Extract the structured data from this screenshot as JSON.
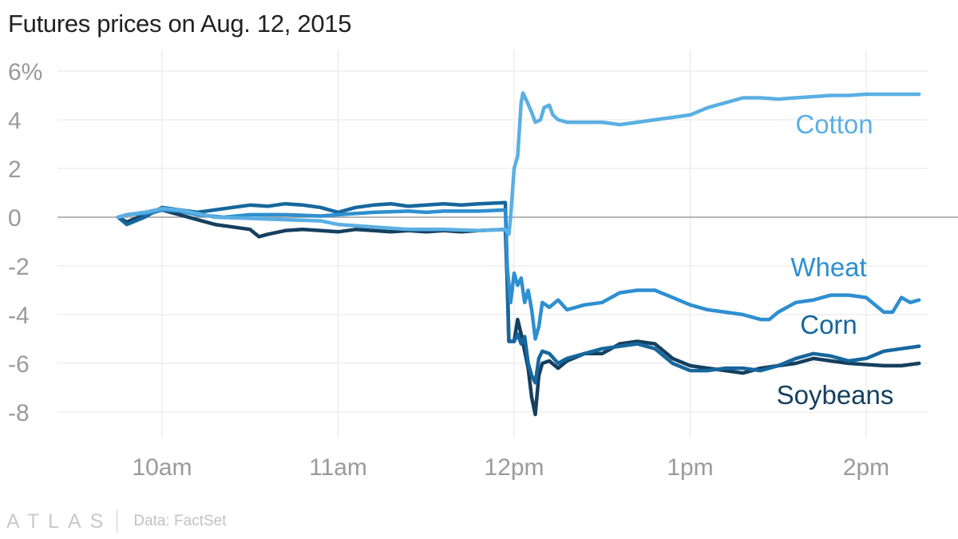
{
  "title": "Futures prices on Aug. 12, 2015",
  "footer": {
    "logo": "ATLAS",
    "source": "Data: FactSet"
  },
  "colors": {
    "cotton": "#5aafe3",
    "wheat": "#2e8fd0",
    "corn": "#17679e",
    "soybeans": "#153f5f",
    "gridline": "#e6e6e6",
    "zeroline": "#8a8a8a",
    "tick_label": "#9a9a9a"
  },
  "chart_data": {
    "type": "line",
    "title": "Futures prices on Aug. 12, 2015",
    "xlabel": "",
    "ylabel": "",
    "x_ticks": [
      {
        "x": 10,
        "label": "10am"
      },
      {
        "x": 11,
        "label": "11am"
      },
      {
        "x": 12,
        "label": "12pm"
      },
      {
        "x": 13,
        "label": "1pm"
      },
      {
        "x": 14,
        "label": "2pm"
      }
    ],
    "y_ticks": [
      {
        "y": 6,
        "label": "6%"
      },
      {
        "y": 4,
        "label": "4"
      },
      {
        "y": 2,
        "label": "2"
      },
      {
        "y": 0,
        "label": "0"
      },
      {
        "y": -2,
        "label": "-2"
      },
      {
        "y": -4,
        "label": "-4"
      },
      {
        "y": -6,
        "label": "-6"
      },
      {
        "y": -8,
        "label": "-8"
      }
    ],
    "xlim": [
      9.5,
      14.35
    ],
    "ylim": [
      -9,
      6.5
    ],
    "grid": true,
    "series": [
      {
        "name": "Cotton",
        "color": "#5aafe3",
        "points": [
          [
            9.75,
            0
          ],
          [
            9.8,
            0.1
          ],
          [
            9.9,
            0.2
          ],
          [
            10,
            0.35
          ],
          [
            10.1,
            0.3
          ],
          [
            10.2,
            0.15
          ],
          [
            10.3,
            0
          ],
          [
            10.5,
            -0.05
          ],
          [
            10.7,
            -0.1
          ],
          [
            10.9,
            -0.15
          ],
          [
            11,
            -0.3
          ],
          [
            11.2,
            -0.4
          ],
          [
            11.4,
            -0.5
          ],
          [
            11.6,
            -0.5
          ],
          [
            11.8,
            -0.55
          ],
          [
            11.95,
            -0.5
          ],
          [
            11.97,
            -0.7
          ],
          [
            11.98,
            0
          ],
          [
            12,
            2
          ],
          [
            12.02,
            2.5
          ],
          [
            12.04,
            4.7
          ],
          [
            12.05,
            5.1
          ],
          [
            12.07,
            4.8
          ],
          [
            12.1,
            4.3
          ],
          [
            12.12,
            3.9
          ],
          [
            12.15,
            4
          ],
          [
            12.17,
            4.5
          ],
          [
            12.2,
            4.6
          ],
          [
            12.22,
            4.2
          ],
          [
            12.25,
            4
          ],
          [
            12.3,
            3.9
          ],
          [
            12.4,
            3.9
          ],
          [
            12.5,
            3.9
          ],
          [
            12.6,
            3.8
          ],
          [
            12.7,
            3.9
          ],
          [
            12.8,
            4
          ],
          [
            12.9,
            4.1
          ],
          [
            13,
            4.2
          ],
          [
            13.1,
            4.5
          ],
          [
            13.2,
            4.7
          ],
          [
            13.3,
            4.9
          ],
          [
            13.4,
            4.9
          ],
          [
            13.5,
            4.85
          ],
          [
            13.6,
            4.9
          ],
          [
            13.7,
            4.95
          ],
          [
            13.8,
            5
          ],
          [
            13.9,
            5
          ],
          [
            14,
            5.05
          ],
          [
            14.1,
            5.05
          ],
          [
            14.2,
            5.05
          ],
          [
            14.3,
            5.05
          ]
        ]
      },
      {
        "name": "Wheat",
        "color": "#2e8fd0",
        "points": [
          [
            9.75,
            0
          ],
          [
            9.8,
            0.1
          ],
          [
            9.9,
            0.15
          ],
          [
            10,
            0.3
          ],
          [
            10.1,
            0.25
          ],
          [
            10.2,
            0.1
          ],
          [
            10.35,
            0
          ],
          [
            10.5,
            0.1
          ],
          [
            10.7,
            0.1
          ],
          [
            10.9,
            0.05
          ],
          [
            11,
            0.1
          ],
          [
            11.2,
            0.2
          ],
          [
            11.4,
            0.25
          ],
          [
            11.5,
            0.2
          ],
          [
            11.6,
            0.25
          ],
          [
            11.8,
            0.25
          ],
          [
            11.95,
            0.3
          ],
          [
            11.96,
            -2
          ],
          [
            11.98,
            -3.5
          ],
          [
            12,
            -2.3
          ],
          [
            12.02,
            -2.8
          ],
          [
            12.04,
            -2.5
          ],
          [
            12.06,
            -3.5
          ],
          [
            12.08,
            -3
          ],
          [
            12.1,
            -3.8
          ],
          [
            12.12,
            -5
          ],
          [
            12.14,
            -4.5
          ],
          [
            12.16,
            -3.5
          ],
          [
            12.2,
            -3.7
          ],
          [
            12.25,
            -3.4
          ],
          [
            12.3,
            -3.8
          ],
          [
            12.4,
            -3.6
          ],
          [
            12.5,
            -3.5
          ],
          [
            12.6,
            -3.1
          ],
          [
            12.7,
            -3
          ],
          [
            12.8,
            -3
          ],
          [
            12.9,
            -3.3
          ],
          [
            13,
            -3.6
          ],
          [
            13.1,
            -3.8
          ],
          [
            13.2,
            -3.9
          ],
          [
            13.3,
            -4
          ],
          [
            13.4,
            -4.2
          ],
          [
            13.45,
            -4.2
          ],
          [
            13.5,
            -3.9
          ],
          [
            13.6,
            -3.5
          ],
          [
            13.7,
            -3.4
          ],
          [
            13.8,
            -3.2
          ],
          [
            13.9,
            -3.2
          ],
          [
            14,
            -3.3
          ],
          [
            14.1,
            -3.9
          ],
          [
            14.15,
            -3.9
          ],
          [
            14.2,
            -3.3
          ],
          [
            14.25,
            -3.5
          ],
          [
            14.3,
            -3.4
          ]
        ]
      },
      {
        "name": "Corn",
        "color": "#17679e",
        "points": [
          [
            9.75,
            0
          ],
          [
            9.8,
            -0.3
          ],
          [
            9.9,
            0
          ],
          [
            10,
            0.4
          ],
          [
            10.1,
            0.3
          ],
          [
            10.2,
            0.2
          ],
          [
            10.3,
            0.3
          ],
          [
            10.4,
            0.4
          ],
          [
            10.5,
            0.5
          ],
          [
            10.6,
            0.45
          ],
          [
            10.7,
            0.55
          ],
          [
            10.8,
            0.5
          ],
          [
            10.9,
            0.4
          ],
          [
            11,
            0.2
          ],
          [
            11.1,
            0.4
          ],
          [
            11.2,
            0.5
          ],
          [
            11.3,
            0.55
          ],
          [
            11.4,
            0.45
          ],
          [
            11.5,
            0.5
          ],
          [
            11.6,
            0.55
          ],
          [
            11.7,
            0.5
          ],
          [
            11.8,
            0.55
          ],
          [
            11.95,
            0.6
          ],
          [
            11.96,
            -2
          ],
          [
            11.97,
            -5.1
          ],
          [
            12,
            -5.1
          ],
          [
            12.02,
            -4.8
          ],
          [
            12.04,
            -5.2
          ],
          [
            12.06,
            -4.9
          ],
          [
            12.08,
            -6
          ],
          [
            12.1,
            -6.5
          ],
          [
            12.12,
            -6.8
          ],
          [
            12.14,
            -5.8
          ],
          [
            12.16,
            -5.5
          ],
          [
            12.2,
            -5.6
          ],
          [
            12.25,
            -6
          ],
          [
            12.3,
            -5.8
          ],
          [
            12.4,
            -5.6
          ],
          [
            12.5,
            -5.4
          ],
          [
            12.6,
            -5.3
          ],
          [
            12.7,
            -5.2
          ],
          [
            12.8,
            -5.4
          ],
          [
            12.9,
            -6
          ],
          [
            13,
            -6.3
          ],
          [
            13.1,
            -6.3
          ],
          [
            13.2,
            -6.2
          ],
          [
            13.3,
            -6.2
          ],
          [
            13.4,
            -6.3
          ],
          [
            13.5,
            -6.1
          ],
          [
            13.6,
            -5.8
          ],
          [
            13.7,
            -5.6
          ],
          [
            13.8,
            -5.7
          ],
          [
            13.9,
            -5.9
          ],
          [
            14,
            -5.8
          ],
          [
            14.1,
            -5.5
          ],
          [
            14.2,
            -5.4
          ],
          [
            14.3,
            -5.3
          ]
        ]
      },
      {
        "name": "Soybeans",
        "color": "#153f5f",
        "points": [
          [
            9.75,
            0
          ],
          [
            9.8,
            -0.2
          ],
          [
            9.9,
            0.1
          ],
          [
            10,
            0.3
          ],
          [
            10.1,
            0.1
          ],
          [
            10.2,
            -0.1
          ],
          [
            10.3,
            -0.3
          ],
          [
            10.4,
            -0.4
          ],
          [
            10.5,
            -0.5
          ],
          [
            10.55,
            -0.8
          ],
          [
            10.6,
            -0.7
          ],
          [
            10.7,
            -0.55
          ],
          [
            10.8,
            -0.5
          ],
          [
            10.9,
            -0.55
          ],
          [
            11,
            -0.6
          ],
          [
            11.1,
            -0.5
          ],
          [
            11.2,
            -0.55
          ],
          [
            11.3,
            -0.6
          ],
          [
            11.4,
            -0.55
          ],
          [
            11.5,
            -0.6
          ],
          [
            11.6,
            -0.55
          ],
          [
            11.7,
            -0.6
          ],
          [
            11.8,
            -0.55
          ],
          [
            11.95,
            -0.5
          ],
          [
            11.96,
            -2.5
          ],
          [
            11.97,
            -5.1
          ],
          [
            12,
            -5.1
          ],
          [
            12.02,
            -4.2
          ],
          [
            12.04,
            -4.8
          ],
          [
            12.06,
            -5.5
          ],
          [
            12.08,
            -6.2
          ],
          [
            12.1,
            -7.4
          ],
          [
            12.12,
            -8.1
          ],
          [
            12.14,
            -6.5
          ],
          [
            12.16,
            -6
          ],
          [
            12.2,
            -5.9
          ],
          [
            12.25,
            -6.2
          ],
          [
            12.3,
            -5.9
          ],
          [
            12.4,
            -5.6
          ],
          [
            12.5,
            -5.6
          ],
          [
            12.6,
            -5.2
          ],
          [
            12.7,
            -5.1
          ],
          [
            12.8,
            -5.2
          ],
          [
            12.9,
            -5.8
          ],
          [
            13,
            -6.1
          ],
          [
            13.1,
            -6.2
          ],
          [
            13.2,
            -6.3
          ],
          [
            13.3,
            -6.4
          ],
          [
            13.4,
            -6.2
          ],
          [
            13.5,
            -6.1
          ],
          [
            13.6,
            -6
          ],
          [
            13.7,
            -5.8
          ],
          [
            13.8,
            -5.9
          ],
          [
            13.9,
            -6
          ],
          [
            14,
            -6.05
          ],
          [
            14.1,
            -6.1
          ],
          [
            14.2,
            -6.1
          ],
          [
            14.3,
            -6
          ]
        ]
      }
    ],
    "annotations": [
      {
        "series": "Cotton",
        "text": "Cotton"
      },
      {
        "series": "Wheat",
        "text": "Wheat"
      },
      {
        "series": "Corn",
        "text": "Corn"
      },
      {
        "series": "Soybeans",
        "text": "Soybeans"
      }
    ]
  }
}
